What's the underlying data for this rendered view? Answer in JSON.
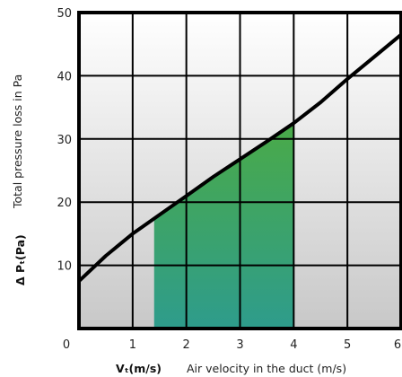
{
  "chart_data": {
    "type": "line",
    "title": "",
    "xlabel_symbol": "Vₜ(m/s)",
    "xlabel": "Air velocity in the duct (m/s)",
    "ylabel_symbol": "Δ Pₜ(Pa)",
    "ylabel": "Total pressure loss in Pa",
    "xlim": [
      0,
      6
    ],
    "ylim": [
      0,
      50
    ],
    "x_ticks": [
      0,
      1,
      2,
      3,
      4,
      5,
      6
    ],
    "x_tick_labels": [
      "0",
      "1",
      "2",
      "3",
      "4",
      "5",
      "6"
    ],
    "y_ticks": [
      10,
      20,
      30,
      40,
      50
    ],
    "y_tick_labels": [
      "10",
      "20",
      "30",
      "40",
      "50"
    ],
    "grid": true,
    "series": [
      {
        "x": [
          0,
          0.5,
          1,
          1.5,
          2,
          2.5,
          3,
          3.5,
          4,
          4.5,
          5,
          5.5,
          6
        ],
        "y": [
          7.5,
          11.5,
          15,
          18,
          21,
          24,
          26.8,
          29.6,
          32.5,
          35.8,
          39.5,
          43,
          46.5
        ],
        "color": "#000000"
      }
    ],
    "shaded_region": {
      "x_from": 1.4,
      "x_to": 4.0,
      "color_top": "#4aaa48",
      "color_bottom": "#2e9c8c"
    },
    "background_gradient": {
      "top": "#ffffff",
      "bottom": "#c8c8c8"
    }
  }
}
